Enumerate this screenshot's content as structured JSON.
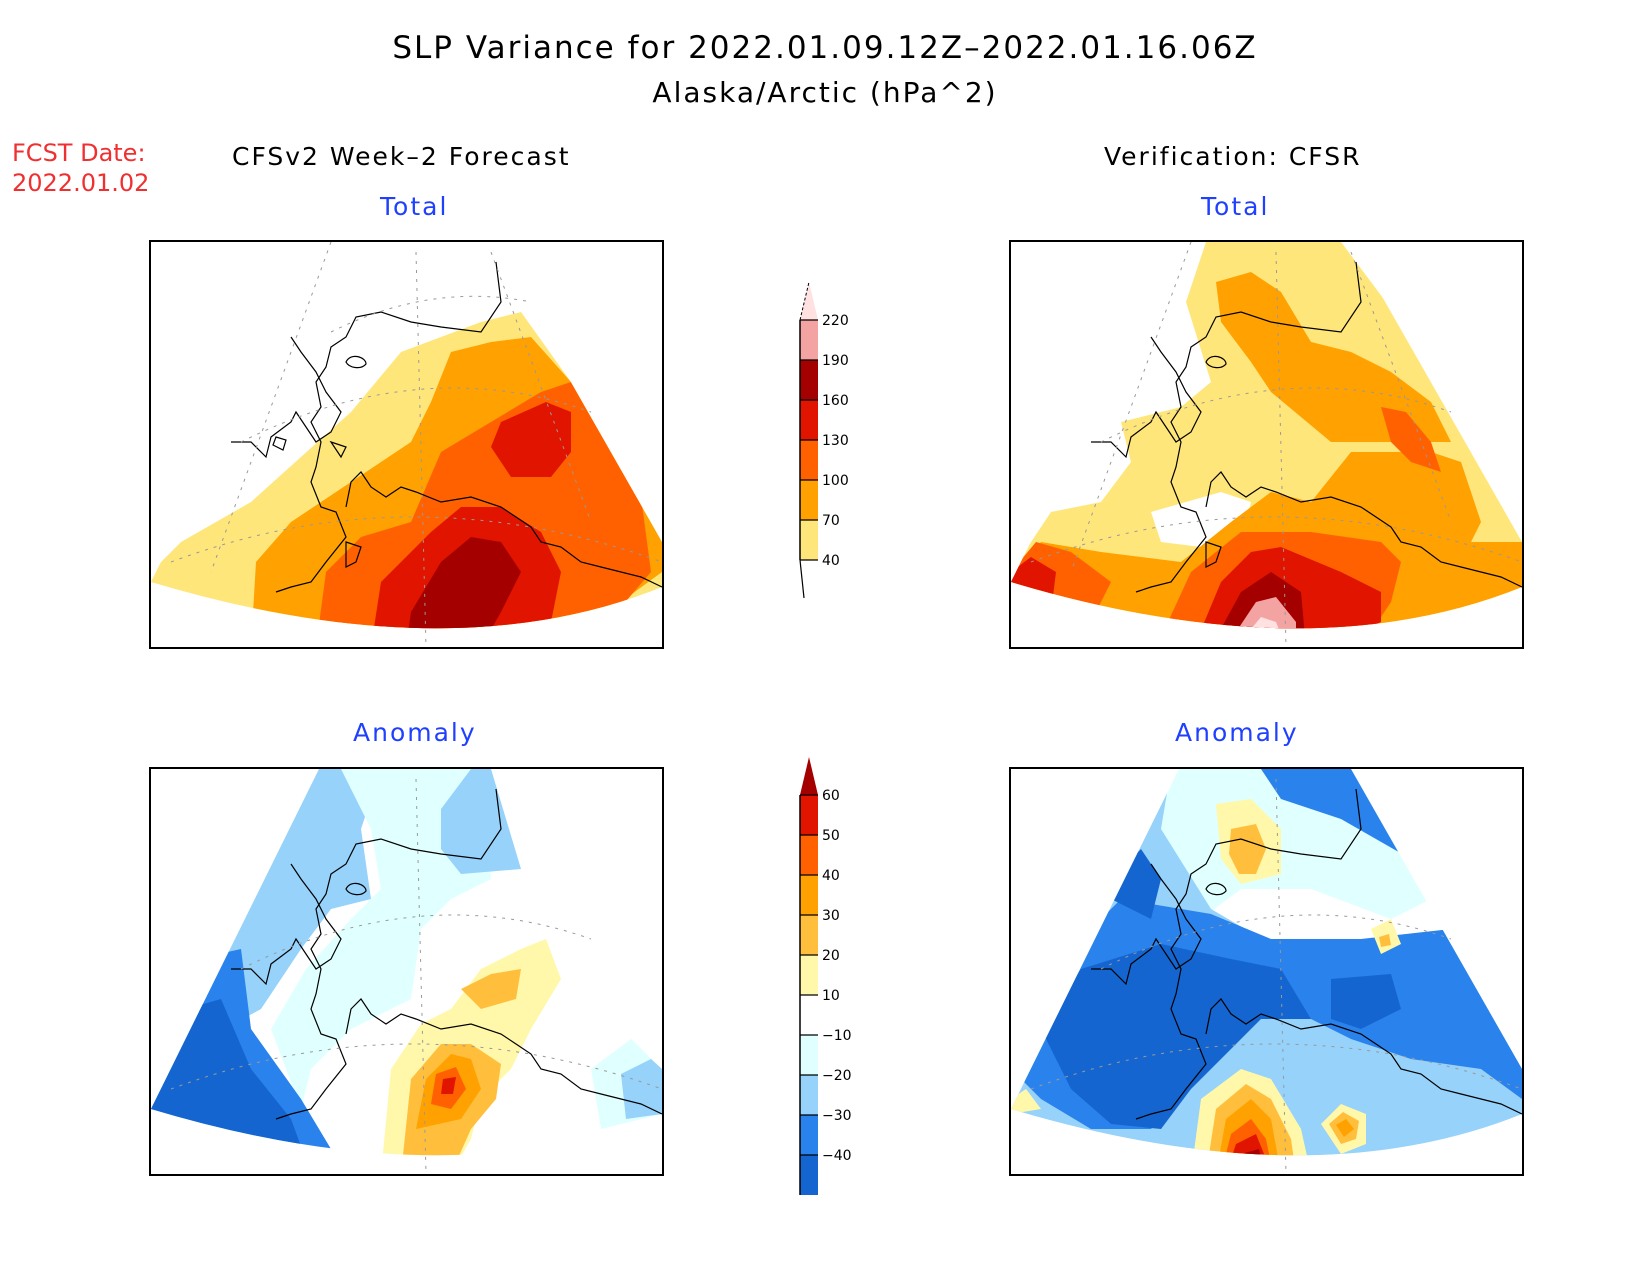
{
  "header": {
    "title": "SLP Variance for 2022.01.09.12Z–2022.01.16.06Z",
    "subtitle": "Alaska/Arctic (hPa^2)"
  },
  "fcst": {
    "label": "FCST Date:",
    "date": "2022.01.02"
  },
  "columns": {
    "left": "CFSv2 Week–2 Forecast",
    "right": "Verification: CFSR"
  },
  "panel_titles": {
    "total": "Total",
    "anomaly": "Anomaly"
  },
  "chart_data": [
    {
      "type": "heatmap",
      "name": "total-colorbar",
      "levels": [
        40,
        70,
        100,
        130,
        160,
        190,
        220
      ],
      "labels": [
        "40",
        "70",
        "100",
        "130",
        "160",
        "190",
        "220"
      ],
      "colors": [
        "#ffe67a",
        "#ffa100",
        "#ff6100",
        "#e11400",
        "#a50000",
        "#f4a3a3",
        "#ffe1e1"
      ],
      "units": "hPa^2"
    },
    {
      "type": "heatmap",
      "name": "anomaly-colorbar",
      "levels": [
        -40,
        -30,
        -20,
        -10,
        10,
        20,
        30,
        40,
        50,
        60
      ],
      "labels": [
        "−40",
        "−30",
        "−20",
        "−10",
        "10",
        "20",
        "30",
        "40",
        "50",
        "60"
      ],
      "colors": [
        "#1565d1",
        "#2a82ed",
        "#96d2fa",
        "#e0ffff",
        "#ffffff",
        "#fff8aa",
        "#ffbf3c",
        "#ffa100",
        "#ff6100",
        "#e11400",
        "#a50000"
      ],
      "units": "hPa^2"
    }
  ]
}
